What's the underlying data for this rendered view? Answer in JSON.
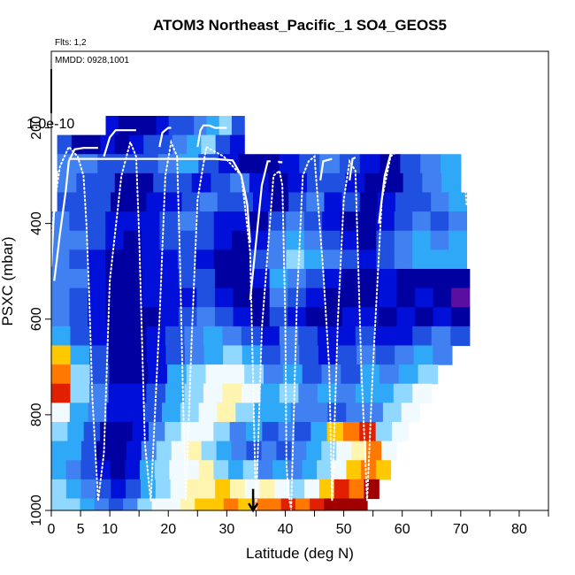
{
  "chart_data": {
    "type": "heatmap",
    "title": "ATOM3 Northeast_Pacific_1 SO4_GEOS5",
    "annotations": {
      "flights": "Flts: 1,2",
      "dates": "MMDD: 0928,1001",
      "top_value": "1.0e-10"
    },
    "xlabel": "Latitude (deg N)",
    "ylabel": "PSXC (mbar)",
    "xlim": [
      0,
      85
    ],
    "ylim": [
      1000,
      40
    ],
    "y_reversed": true,
    "x_ticks": [
      0,
      5,
      10,
      20,
      30,
      40,
      50,
      60,
      70,
      80
    ],
    "x_tick_labels": [
      "0",
      "5",
      "10",
      "20",
      "30",
      "40",
      "50",
      "60",
      "70",
      "80"
    ],
    "x_minor_ticks": [
      15,
      25,
      35,
      45,
      55,
      65,
      75,
      85
    ],
    "y_ticks": [
      200,
      400,
      600,
      800,
      1000
    ],
    "y_tick_labels": [
      "200",
      "400",
      "600",
      "800",
      "1000"
    ],
    "grid": false,
    "legend": "none",
    "colormap": [
      "#5a0fa0",
      "#0000a0",
      "#0010d8",
      "#2050e0",
      "#4080f0",
      "#30a8f8",
      "#90d8ff",
      "#f0faff",
      "#fff4b0",
      "#ffc800",
      "#ff7800",
      "#e02000",
      "#a00000"
    ],
    "value_scale": "colormap index 0-12 (low to high)",
    "pressure_bin_edges": [
      175,
      215,
      255,
      295,
      335,
      375,
      415,
      455,
      495,
      535,
      575,
      615,
      655,
      695,
      735,
      775,
      815,
      855,
      895,
      935,
      975,
      1000
    ],
    "row_extents": [
      [
        9.3,
        33
      ],
      [
        1,
        33
      ],
      [
        1,
        70
      ],
      [
        1,
        70
      ],
      [
        1,
        71
      ],
      [
        0,
        71
      ],
      [
        0,
        71
      ],
      [
        0,
        71
      ],
      [
        0,
        71.5
      ],
      [
        0,
        71.5
      ],
      [
        0,
        71.5
      ],
      [
        0,
        71.5
      ],
      [
        0,
        68.5
      ],
      [
        0,
        66
      ],
      [
        0,
        65
      ],
      [
        0,
        63
      ],
      [
        0,
        61
      ],
      [
        0,
        59
      ],
      [
        0,
        58
      ],
      [
        0,
        56
      ],
      [
        0,
        54
      ]
    ],
    "rows": [
      [
        2,
        1,
        1,
        1,
        2,
        3,
        3,
        4,
        5,
        6,
        3
      ],
      [
        3,
        1,
        1,
        2,
        1,
        2,
        3,
        3,
        4,
        5,
        6,
        3,
        2
      ],
      [
        4,
        4,
        3,
        3,
        3,
        4,
        5,
        3,
        2,
        1,
        1,
        2,
        3,
        4,
        3,
        2,
        1,
        3,
        4,
        5
      ],
      [
        4,
        3,
        3,
        1,
        1,
        3,
        3,
        2,
        3,
        4,
        2,
        1,
        2,
        3,
        3,
        2,
        1,
        1,
        3,
        4,
        5
      ],
      [
        3,
        3,
        3,
        1,
        1,
        2,
        2,
        3,
        4,
        3,
        3,
        2,
        1,
        3,
        4,
        2,
        3,
        1,
        2,
        3,
        3,
        4,
        5
      ],
      [
        4,
        3,
        3,
        2,
        2,
        2,
        3,
        4,
        3,
        2,
        2,
        1,
        3,
        4,
        3,
        2,
        1,
        1,
        2,
        3,
        4,
        3,
        4
      ],
      [
        4,
        4,
        3,
        2,
        1,
        2,
        3,
        3,
        3,
        2,
        1,
        2,
        4,
        5,
        4,
        3,
        2,
        1,
        3,
        4,
        5,
        4,
        5
      ],
      [
        4,
        3,
        2,
        1,
        1,
        2,
        2,
        3,
        2,
        1,
        1,
        3,
        4,
        6,
        5,
        4,
        3,
        2,
        3,
        4,
        5,
        5,
        5
      ],
      [
        4,
        4,
        2,
        1,
        1,
        2,
        2,
        3,
        3,
        1,
        1,
        2,
        5,
        4,
        3,
        2,
        1,
        1,
        2,
        1,
        1,
        1,
        1
      ],
      [
        4,
        3,
        2,
        1,
        1,
        2,
        2,
        2,
        3,
        2,
        1,
        1,
        4,
        3,
        2,
        1,
        1,
        1,
        2,
        1,
        2,
        1,
        0
      ],
      [
        4,
        3,
        2,
        1,
        1,
        1,
        2,
        3,
        4,
        3,
        2,
        1,
        3,
        2,
        1,
        1,
        2,
        2,
        1,
        2,
        1,
        2,
        1
      ],
      [
        5,
        3,
        2,
        1,
        1,
        2,
        3,
        4,
        5,
        4,
        3,
        2,
        4,
        3,
        2,
        2,
        3,
        2,
        2,
        3,
        4,
        3
      ],
      [
        9,
        5,
        3,
        1,
        1,
        2,
        3,
        4,
        5,
        6,
        5,
        3,
        4,
        3,
        2,
        3,
        4,
        3,
        4,
        5,
        4
      ],
      [
        10,
        6,
        3,
        1,
        1,
        2,
        5,
        6,
        7,
        7,
        6,
        4,
        5,
        3,
        4,
        3,
        5,
        4,
        5,
        6
      ],
      [
        11,
        6,
        4,
        2,
        2,
        3,
        5,
        6,
        7,
        8,
        7,
        5,
        6,
        4,
        5,
        4,
        5,
        5,
        6,
        7
      ],
      [
        7,
        5,
        4,
        2,
        2,
        3,
        5,
        6,
        7,
        8,
        6,
        5,
        5,
        4,
        4,
        3,
        4,
        4,
        6,
        7
      ],
      [
        6,
        5,
        3,
        1,
        1,
        2,
        4,
        6,
        7,
        7,
        6,
        4,
        5,
        3,
        4,
        3,
        5,
        9,
        10,
        11,
        6,
        7
      ],
      [
        5,
        5,
        3,
        1,
        1,
        2,
        4,
        6,
        7,
        8,
        6,
        5,
        4,
        3,
        4,
        3,
        4,
        5,
        6,
        7,
        8,
        10,
        7
      ],
      [
        5,
        4,
        3,
        2,
        1,
        2,
        5,
        6,
        7,
        7,
        8,
        6,
        5,
        6,
        4,
        5,
        4,
        5,
        6,
        7,
        9,
        10,
        9
      ],
      [
        6,
        5,
        4,
        3,
        2,
        3,
        5,
        6,
        7,
        8,
        8,
        9,
        8,
        7,
        8,
        7,
        6,
        7,
        9,
        11,
        10,
        12
      ],
      [
        6,
        6,
        5,
        4,
        3,
        4,
        6,
        7,
        7,
        8,
        9,
        9,
        10,
        9,
        10,
        10,
        11,
        10,
        11,
        12,
        12,
        12
      ]
    ],
    "flight_track": {
      "dotted_x": [
        0,
        0.5,
        1.5,
        3,
        4.5,
        5.5,
        6,
        6.5,
        7,
        8,
        9,
        10,
        12,
        13.5,
        14.5,
        15,
        15.5,
        16,
        17,
        18.5,
        19.5,
        20.5,
        21.5,
        22,
        22.5,
        23,
        24,
        25,
        26.5,
        28,
        29.5,
        31,
        32.5,
        34,
        35,
        36,
        38,
        39,
        39.5,
        40,
        40.2,
        40.5,
        41,
        42,
        43,
        44,
        45,
        46.5,
        47.5,
        48,
        49,
        50,
        51,
        52,
        53,
        54,
        55,
        56.5,
        58,
        59,
        62,
        66,
        70,
        70.5,
        71
      ],
      "dotted_p": [
        440,
        360,
        280,
        240,
        260,
        300,
        400,
        560,
        760,
        980,
        880,
        520,
        300,
        230,
        260,
        420,
        640,
        860,
        980,
        600,
        300,
        230,
        260,
        480,
        760,
        980,
        640,
        350,
        240,
        250,
        260,
        280,
        300,
        460,
        1000,
        620,
        300,
        290,
        320,
        600,
        900,
        960,
        1000,
        560,
        300,
        270,
        260,
        500,
        700,
        980,
        600,
        350,
        270,
        290,
        700,
        980,
        700,
        350,
        260,
        250,
        250,
        250,
        250,
        270,
        360
      ],
      "solid_segments": [
        {
          "x": [
            0.5,
            1.5,
            2.5,
            3,
            4,
            5.5,
            6.5,
            7,
            8
          ],
          "p": [
            520,
            420,
            330,
            270,
            245,
            242,
            242,
            242,
            242
          ]
        },
        {
          "x": [
            0,
            0.4,
            1
          ],
          "p": [
            490,
            390,
            290
          ]
        },
        {
          "x": [
            3,
            15,
            24,
            28,
            31,
            32.5,
            33.5,
            34
          ],
          "p": [
            265,
            265,
            265,
            265,
            268,
            300,
            360,
            440
          ]
        },
        {
          "x": [
            9,
            10,
            11,
            12,
            13.5,
            14.5
          ],
          "p": [
            260,
            220,
            205,
            205,
            205,
            205
          ]
        },
        {
          "x": [
            18.5,
            19,
            20,
            20.5
          ],
          "p": [
            240,
            210,
            200,
            200
          ]
        },
        {
          "x": [
            25,
            25.5,
            26,
            27,
            28,
            30
          ],
          "p": [
            240,
            205,
            195,
            195,
            200,
            200
          ]
        },
        {
          "x": [
            34,
            36,
            37,
            37.5
          ],
          "p": [
            560,
            320,
            270,
            270
          ]
        },
        {
          "x": [
            38.8,
            39,
            39.5
          ],
          "p": [
            270,
            272,
            272
          ]
        },
        {
          "x": [
            46,
            46.5,
            48
          ],
          "p": [
            310,
            270,
            265
          ]
        },
        {
          "x": [
            51,
            51.5,
            52
          ],
          "p": [
            310,
            265,
            262
          ]
        },
        {
          "x": [
            56,
            57,
            58,
            59,
            60,
            70
          ],
          "p": [
            400,
            300,
            255,
            228,
            228,
            228
          ]
        }
      ]
    },
    "arrow_marker": {
      "x": 34.5,
      "p_from": 955,
      "p_to": 1000
    }
  }
}
